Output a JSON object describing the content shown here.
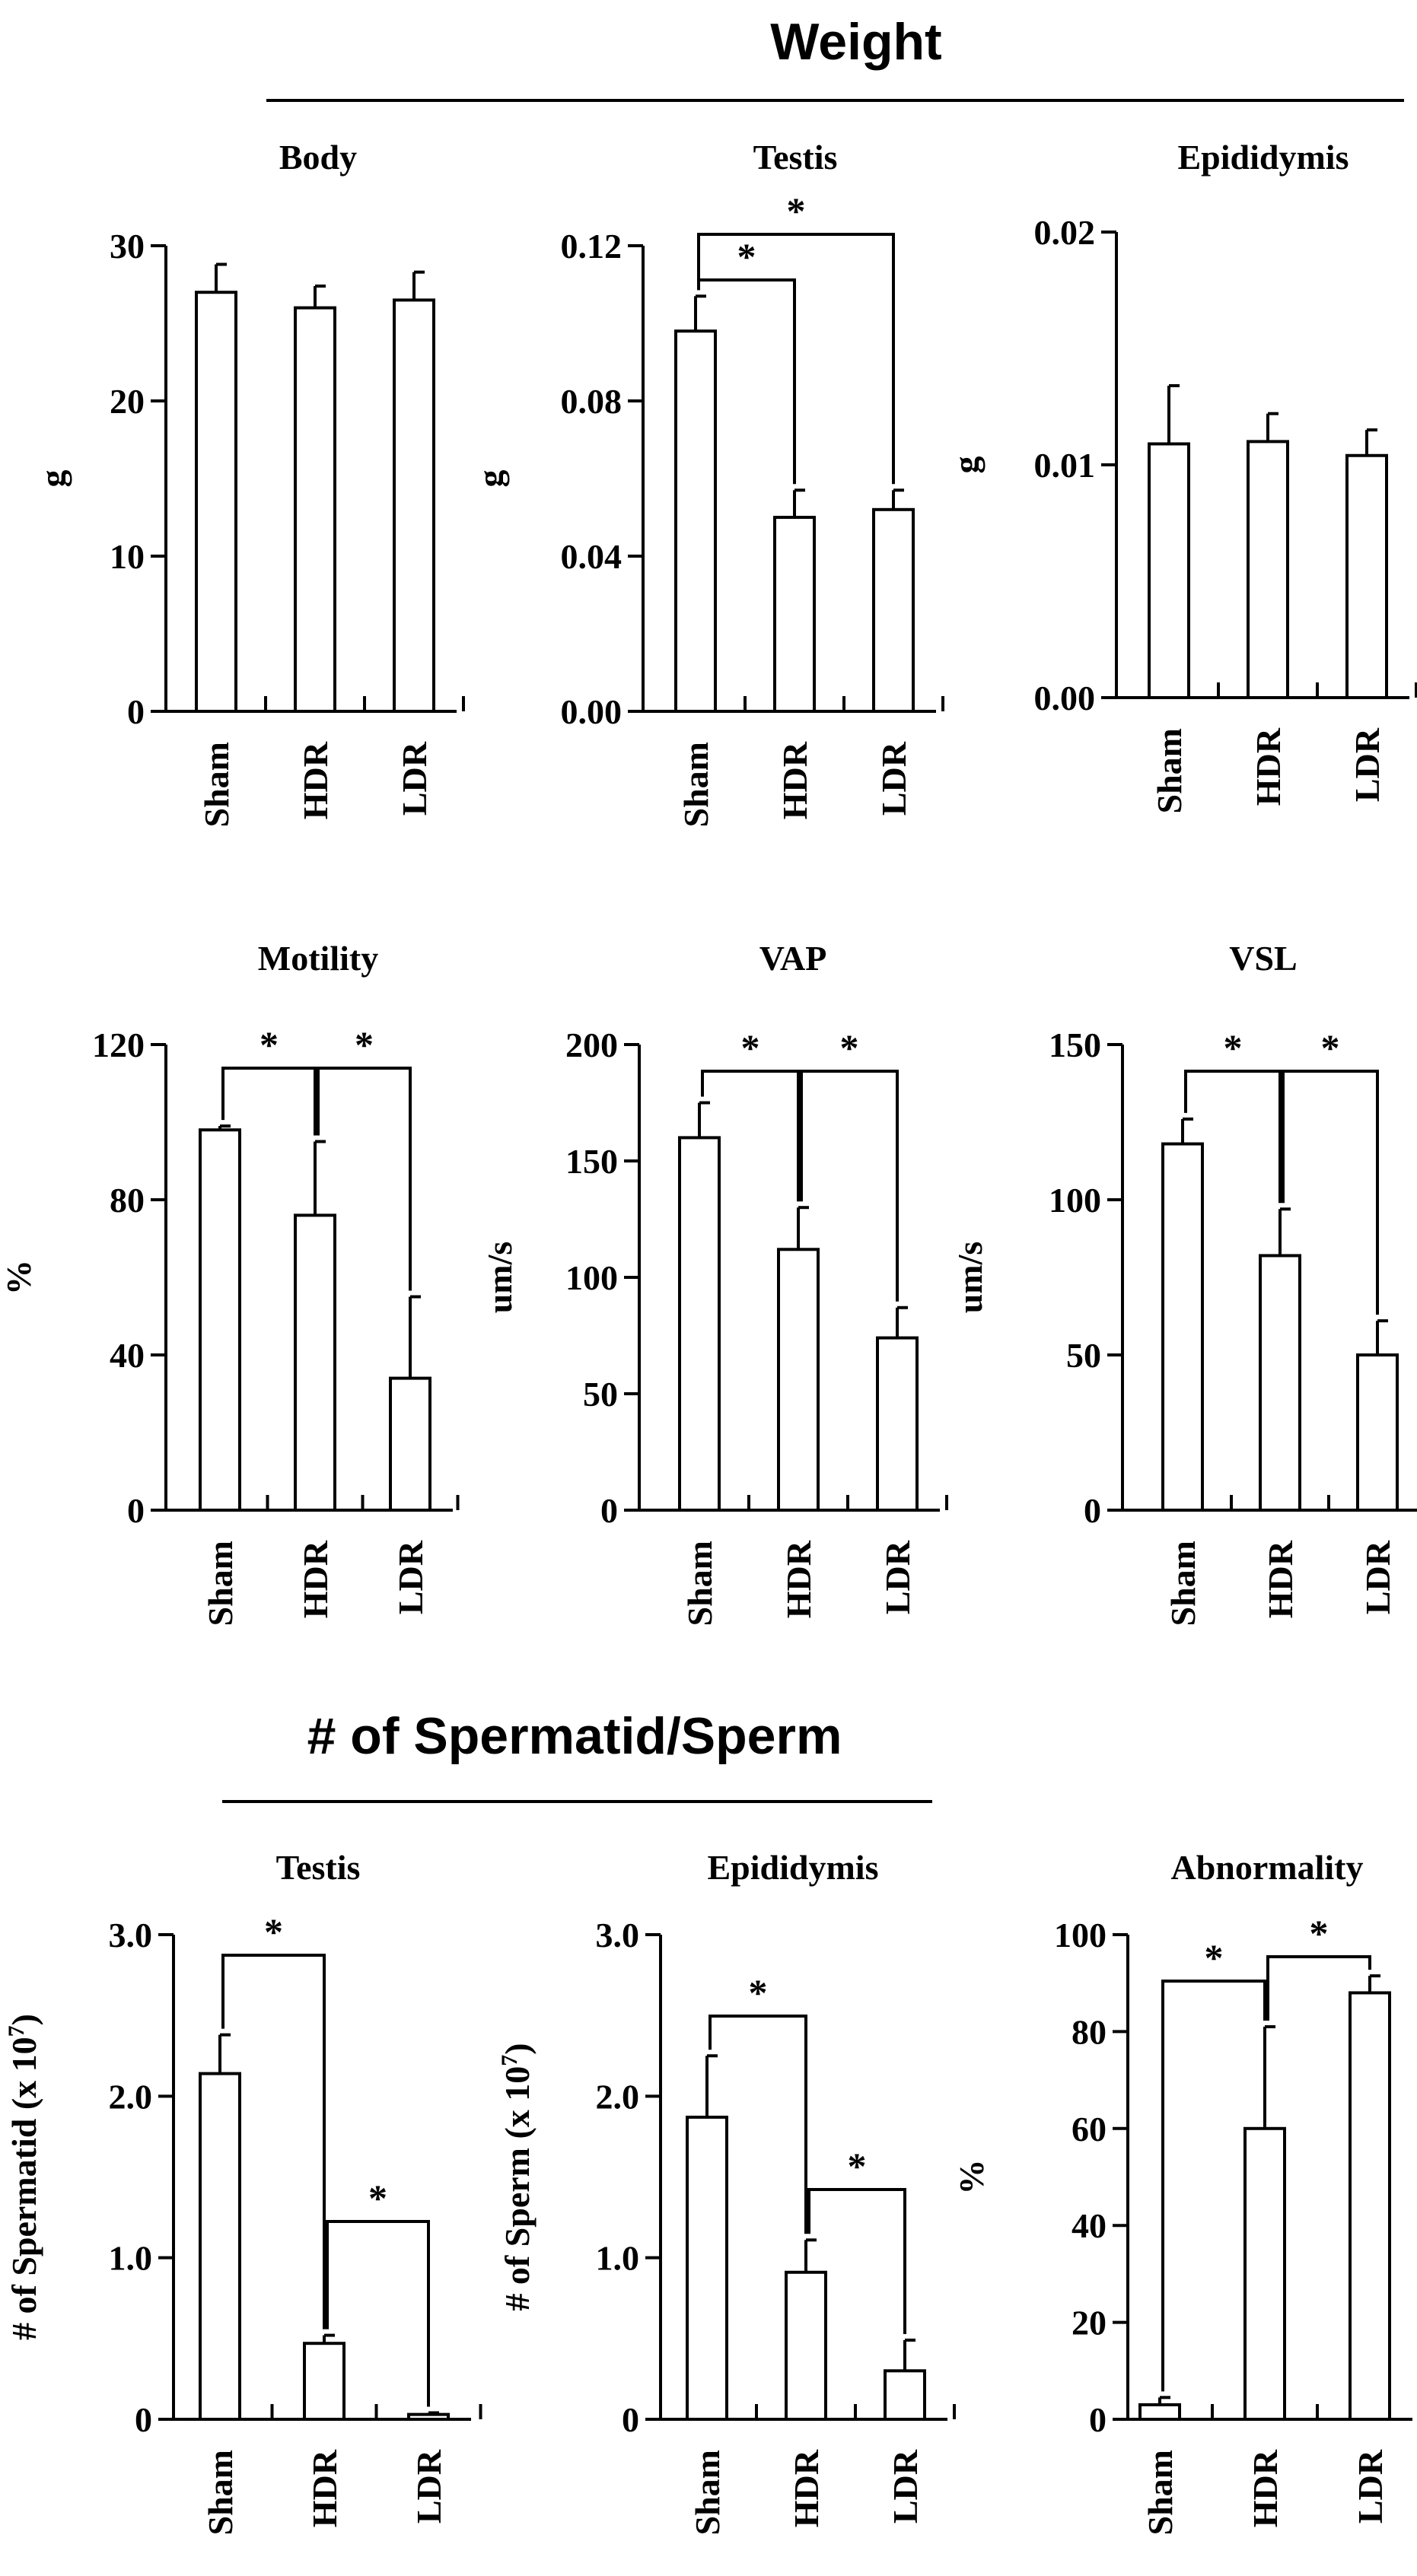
{
  "sections": [
    {
      "title": "Weight"
    },
    {
      "title": "# of Spermatid/Sperm"
    }
  ],
  "chart_data": [
    {
      "type": "bar",
      "title": "Body",
      "ylabel": "g",
      "categories": [
        "Sham",
        "HDR",
        "LDR"
      ],
      "values": [
        27.0,
        26.0,
        26.5
      ],
      "errors": [
        1.8,
        1.4,
        1.8
      ],
      "ylim": [
        0,
        30
      ],
      "yticks": [
        0,
        10,
        20,
        30
      ],
      "ytick_labels": [
        "0",
        "10",
        "20",
        "30"
      ],
      "significance": []
    },
    {
      "type": "bar",
      "title": "Testis",
      "ylabel": "g",
      "categories": [
        "Sham",
        "HDR",
        "LDR"
      ],
      "values": [
        0.098,
        0.05,
        0.052
      ],
      "errors": [
        0.009,
        0.007,
        0.005
      ],
      "ylim": [
        0,
        0.12
      ],
      "yticks": [
        0,
        0.04,
        0.08,
        0.12
      ],
      "ytick_labels": [
        "0.00",
        "0.04",
        "0.08",
        "0.12"
      ],
      "significance": [
        {
          "from": 0,
          "to": 1,
          "label": "*"
        },
        {
          "from": 0,
          "to": 2,
          "label": "*"
        }
      ]
    },
    {
      "type": "bar",
      "title": "Epididymis",
      "ylabel": "g",
      "categories": [
        "Sham",
        "HDR",
        "LDR"
      ],
      "values": [
        0.0109,
        0.011,
        0.0104
      ],
      "errors": [
        0.0025,
        0.0012,
        0.0011
      ],
      "ylim": [
        0,
        0.02
      ],
      "yticks": [
        0,
        0.01,
        0.02
      ],
      "ytick_labels": [
        "0.00",
        "0.01",
        "0.02"
      ],
      "significance": []
    },
    {
      "type": "bar",
      "title": "Motility",
      "ylabel": "%",
      "categories": [
        "Sham",
        "HDR",
        "LDR"
      ],
      "values": [
        98,
        76,
        34
      ],
      "errors": [
        1,
        19,
        21
      ],
      "ylim": [
        0,
        120
      ],
      "yticks": [
        0,
        40,
        80,
        120
      ],
      "ytick_labels": [
        "0",
        "40",
        "80",
        "120"
      ],
      "significance": [
        {
          "from": 0,
          "to": 1,
          "label": "*"
        },
        {
          "from": 1,
          "to": 2,
          "label": "*"
        }
      ]
    },
    {
      "type": "bar",
      "title": "VAP",
      "ylabel": "um/s",
      "categories": [
        "Sham",
        "HDR",
        "LDR"
      ],
      "values": [
        160,
        112,
        74
      ],
      "errors": [
        15,
        18,
        13
      ],
      "ylim": [
        0,
        200
      ],
      "yticks": [
        0,
        50,
        100,
        150,
        200
      ],
      "ytick_labels": [
        "0",
        "50",
        "100",
        "150",
        "200"
      ],
      "significance": [
        {
          "from": 0,
          "to": 1,
          "label": "*"
        },
        {
          "from": 1,
          "to": 2,
          "label": "*"
        }
      ]
    },
    {
      "type": "bar",
      "title": "VSL",
      "ylabel": "um/s",
      "categories": [
        "Sham",
        "HDR",
        "LDR"
      ],
      "values": [
        118,
        82,
        50
      ],
      "errors": [
        8,
        15,
        11
      ],
      "ylim": [
        0,
        150
      ],
      "yticks": [
        0,
        50,
        100,
        150
      ],
      "ytick_labels": [
        "0",
        "50",
        "100",
        "150"
      ],
      "significance": [
        {
          "from": 0,
          "to": 1,
          "label": "*"
        },
        {
          "from": 1,
          "to": 2,
          "label": "*"
        }
      ]
    },
    {
      "type": "bar",
      "title": "Testis",
      "ylabel": "# of Spermatid (x 10",
      "ylabel_exp": "7",
      "ylabel_close": ")",
      "categories": [
        "Sham",
        "HDR",
        "LDR"
      ],
      "values": [
        2.14,
        0.47,
        0.03
      ],
      "errors": [
        0.24,
        0.05,
        0.01
      ],
      "ylim": [
        0,
        3.0
      ],
      "yticks": [
        0,
        1.0,
        2.0,
        3.0
      ],
      "ytick_labels": [
        "0",
        "1.0",
        "2.0",
        "3.0"
      ],
      "significance": [
        {
          "from": 0,
          "to": 1,
          "label": "*"
        },
        {
          "from": 1,
          "to": 2,
          "label": "*"
        }
      ]
    },
    {
      "type": "bar",
      "title": "Epididymis",
      "ylabel": "# of Sperm (x 10",
      "ylabel_exp": "7",
      "ylabel_close": ")",
      "categories": [
        "Sham",
        "HDR",
        "LDR"
      ],
      "values": [
        1.87,
        0.91,
        0.3
      ],
      "errors": [
        0.38,
        0.2,
        0.19
      ],
      "ylim": [
        0,
        3.0
      ],
      "yticks": [
        0,
        1.0,
        2.0,
        3.0
      ],
      "ytick_labels": [
        "0",
        "1.0",
        "2.0",
        "3.0"
      ],
      "significance": [
        {
          "from": 0,
          "to": 1,
          "label": "*"
        },
        {
          "from": 1,
          "to": 2,
          "label": "*"
        }
      ]
    },
    {
      "type": "bar",
      "title": "Abnormality",
      "ylabel": "%",
      "categories": [
        "Sham",
        "HDR",
        "LDR"
      ],
      "values": [
        3,
        60,
        88
      ],
      "errors": [
        1.5,
        21,
        3.5
      ],
      "ylim": [
        0,
        100
      ],
      "yticks": [
        0,
        20,
        40,
        60,
        80,
        100
      ],
      "ytick_labels": [
        "0",
        "20",
        "40",
        "60",
        "80",
        "100"
      ],
      "significance": [
        {
          "from": 0,
          "to": 1,
          "label": "*"
        },
        {
          "from": 1,
          "to": 2,
          "label": "*"
        }
      ]
    }
  ]
}
